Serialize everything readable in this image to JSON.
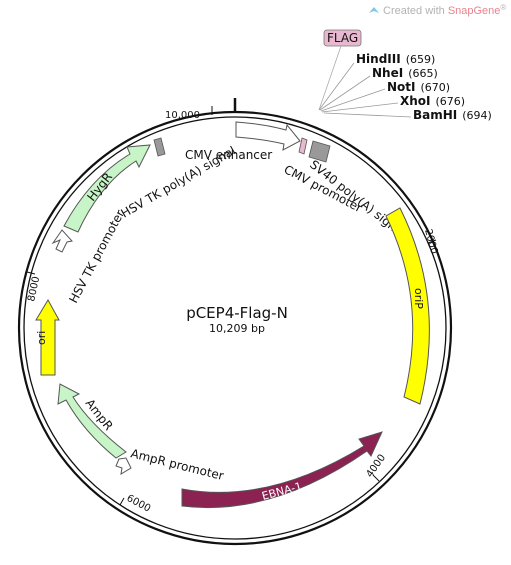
{
  "credit": {
    "prefix": "Created with ",
    "brand": "SnapGene",
    "mark": "®"
  },
  "plasmid": {
    "name": "pCEP4-Flag-N",
    "length": "10,209 bp"
  },
  "ticks": [
    "10,000",
    "2000",
    "4000",
    "6000",
    "8000"
  ],
  "features": {
    "flag": "FLAG",
    "cmv_enhancer": "CMV enhancer",
    "cmv_promoter": "CMV promoter",
    "sv40_polya": "SV40 poly(A) signal",
    "hsv_tk_polya": "HSV TK poly(A) signal",
    "hygr": "HygR",
    "hsv_tk_promoter": "HSV TK promoter",
    "ori": "ori",
    "amp_r": "AmpR",
    "amp_r_promoter": "AmpR promoter",
    "ebna1": "EBNA-1",
    "ori_p": "oriP"
  },
  "sites": [
    {
      "name": "HindIII",
      "pos": "(659)"
    },
    {
      "name": "NheI",
      "pos": "(665)"
    },
    {
      "name": "NotI",
      "pos": "(670)"
    },
    {
      "name": "XhoI",
      "pos": "(676)"
    },
    {
      "name": "BamHI",
      "pos": "(694)"
    }
  ],
  "colors": {
    "backbone": "#111111",
    "hygr_fill": "#c8f5c8",
    "amp_fill": "#c8f5c8",
    "ori_fill": "#ffff00",
    "orip_fill": "#ffff00",
    "ebna_fill": "#8b2252",
    "flag_fill": "#e8b8d0",
    "cmv_fill": "#ffffff",
    "polya_fill": "#999999",
    "credit_brand": "#e8838f"
  }
}
